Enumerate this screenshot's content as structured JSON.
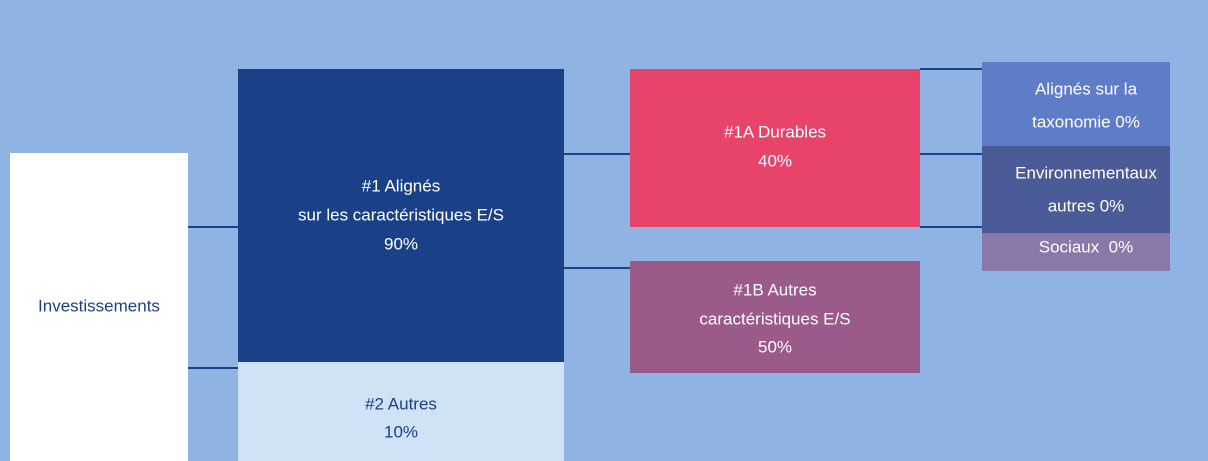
{
  "nodes": [
    {
      "lines": [
        "Investissements"
      ]
    },
    {
      "lines": [
        "#1 Alignés",
        "sur les caractéristiques E/S",
        "90%"
      ]
    },
    {
      "lines": [
        "#2 Autres",
        "10%"
      ]
    },
    {
      "lines": [
        "#1A Durables",
        "40%"
      ]
    },
    {
      "lines": [
        "#1B Autres",
        "caractéristiques E/S",
        "50%"
      ]
    },
    {
      "lines": [
        "Alignés sur la",
        "taxonomie 0%"
      ]
    },
    {
      "lines": [
        "Environnementaux",
        "autres 0%"
      ]
    },
    {
      "lines": [
        "Sociaux  0%"
      ]
    }
  ]
}
